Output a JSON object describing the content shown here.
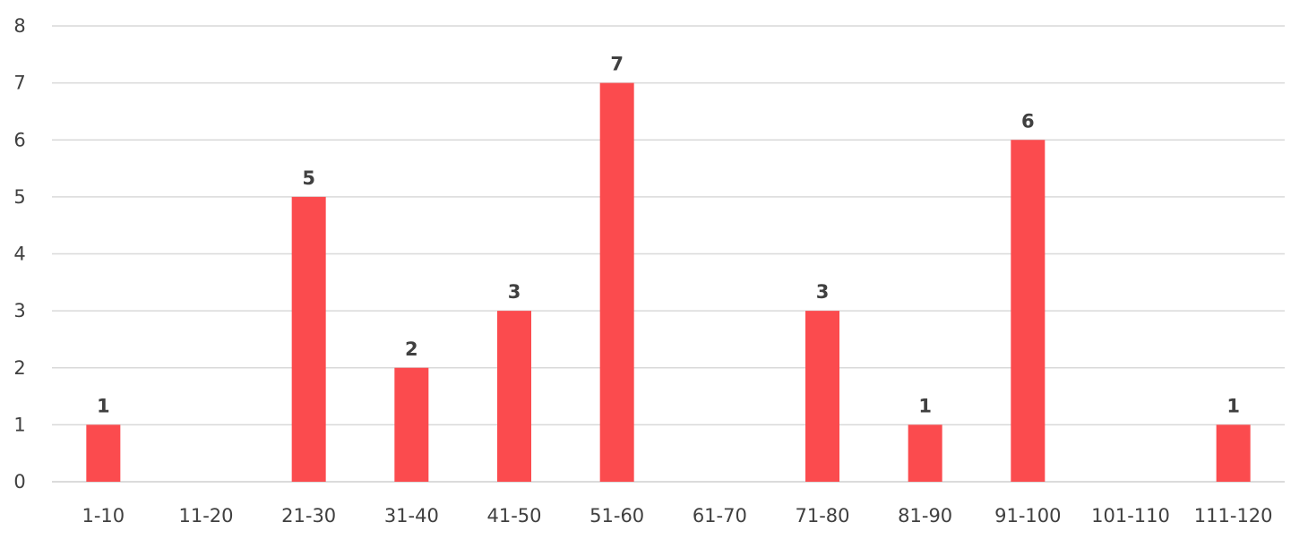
{
  "chart_data": {
    "type": "bar",
    "title": "",
    "xlabel": "",
    "ylabel": "",
    "categories": [
      "1-10",
      "11-20",
      "21-30",
      "31-40",
      "41-50",
      "51-60",
      "61-70",
      "71-80",
      "81-90",
      "91-100",
      "101-110",
      "111-120"
    ],
    "values": [
      1,
      0,
      5,
      2,
      3,
      7,
      0,
      3,
      1,
      6,
      0,
      1
    ],
    "ylim": [
      0,
      8
    ],
    "yticks": [
      0,
      1,
      2,
      3,
      4,
      5,
      6,
      7,
      8
    ],
    "grid": true,
    "legend": "none",
    "bar_color": "#fb4b4e",
    "data_labels_shown_for_zero": false
  }
}
